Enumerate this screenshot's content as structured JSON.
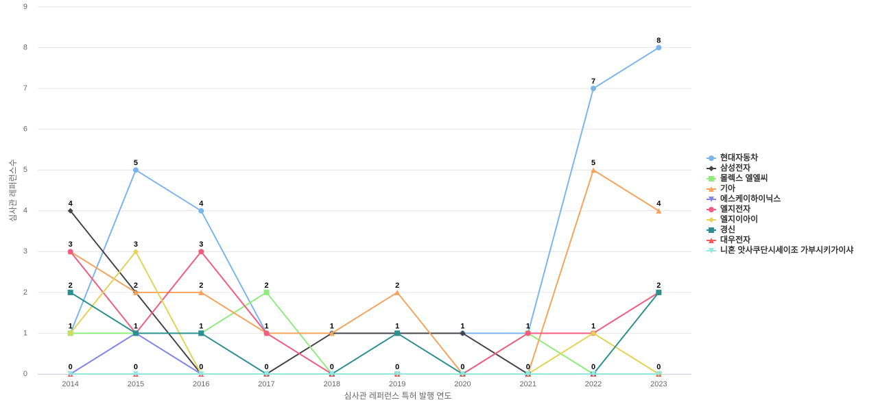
{
  "chart_data": {
    "type": "line",
    "x_label": "심사관 레퍼런스 특허 발행 연도",
    "y_label": "심사관 레퍼런스수",
    "categories": [
      "2014",
      "2015",
      "2016",
      "2017",
      "2018",
      "2019",
      "2020",
      "2021",
      "2022",
      "2023"
    ],
    "ylim": [
      0,
      9
    ],
    "yticks": [
      0,
      1,
      2,
      3,
      4,
      5,
      6,
      7,
      8,
      9
    ],
    "grid": true,
    "legend": "right",
    "series": [
      {
        "name": "현대자동차",
        "color": "#7cb5ec",
        "marker": "circle",
        "values": [
          1,
          5,
          4,
          1,
          1,
          1,
          1,
          1,
          7,
          8
        ]
      },
      {
        "name": "삼성전자",
        "color": "#434348",
        "marker": "diamond",
        "values": [
          4,
          2,
          0,
          0,
          1,
          1,
          1,
          0,
          0,
          0
        ]
      },
      {
        "name": "몰렉스 엘엘씨",
        "color": "#90ed7d",
        "marker": "square",
        "values": [
          1,
          1,
          1,
          2,
          0,
          0,
          0,
          1,
          0,
          0
        ]
      },
      {
        "name": "기아",
        "color": "#f7a35c",
        "marker": "triangle",
        "values": [
          3,
          2,
          2,
          1,
          1,
          2,
          0,
          0,
          5,
          4
        ]
      },
      {
        "name": "에스케이하이닉스",
        "color": "#8085e9",
        "marker": "triangle-down",
        "values": [
          0,
          1,
          0,
          0,
          0,
          0,
          0,
          0,
          0,
          0
        ]
      },
      {
        "name": "엘지전자",
        "color": "#f15c80",
        "marker": "circle",
        "values": [
          3,
          1,
          3,
          1,
          0,
          0,
          0,
          1,
          1,
          2
        ]
      },
      {
        "name": "엘지이아이",
        "color": "#e4d354",
        "marker": "diamond",
        "values": [
          1,
          3,
          0,
          0,
          0,
          0,
          0,
          0,
          1,
          0
        ]
      },
      {
        "name": "경신",
        "color": "#2b908f",
        "marker": "square",
        "values": [
          2,
          1,
          1,
          0,
          0,
          1,
          0,
          0,
          0,
          2
        ]
      },
      {
        "name": "대우전자",
        "color": "#f45b5b",
        "marker": "triangle",
        "values": [
          0,
          0,
          0,
          0,
          0,
          0,
          0,
          0,
          0,
          0
        ]
      },
      {
        "name": "니혼 앗사쿠단시세이조 가부시키가이샤",
        "color": "#91e8e1",
        "marker": "triangle-down",
        "values": [
          0,
          0,
          0,
          0,
          0,
          0,
          0,
          0,
          0,
          0
        ]
      }
    ]
  }
}
